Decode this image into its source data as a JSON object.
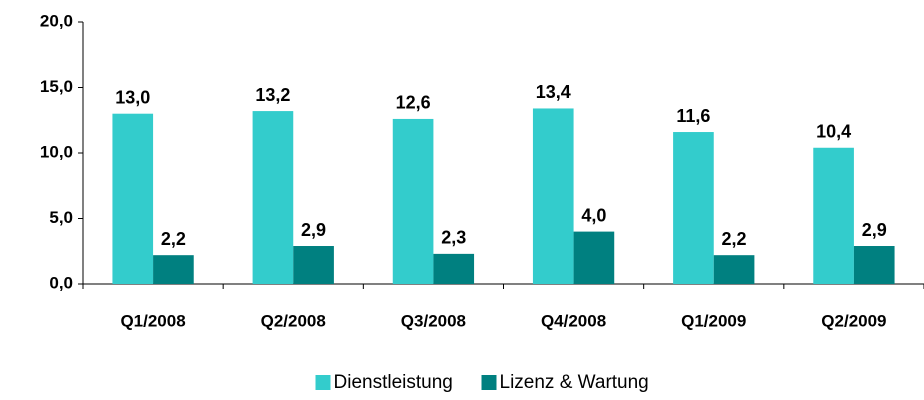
{
  "chart_data": {
    "type": "bar",
    "categories": [
      "Q1/2008",
      "Q2/2008",
      "Q3/2008",
      "Q4/2008",
      "Q1/2009",
      "Q2/2009"
    ],
    "series": [
      {
        "name": "Dienstleistung",
        "color": "#33cccc",
        "values": [
          13.0,
          13.2,
          12.6,
          13.4,
          11.6,
          10.4
        ],
        "value_labels": [
          "13,0",
          "13,2",
          "12,6",
          "13,4",
          "11,6",
          "10,4"
        ]
      },
      {
        "name": "Lizenz & Wartung",
        "color": "#008080",
        "values": [
          2.2,
          2.9,
          2.3,
          4.0,
          2.2,
          2.9
        ],
        "value_labels": [
          "2,2",
          "2,9",
          "2,3",
          "4,0",
          "2,2",
          "2,9"
        ]
      }
    ],
    "ylim": [
      0,
      20
    ],
    "yticks": [
      {
        "value": 0,
        "label": "0,0"
      },
      {
        "value": 5,
        "label": "5,0"
      },
      {
        "value": 10,
        "label": "10,0"
      },
      {
        "value": 15,
        "label": "15,0"
      },
      {
        "value": 20,
        "label": "20,0"
      }
    ],
    "grid": false,
    "legend": "bottom"
  }
}
